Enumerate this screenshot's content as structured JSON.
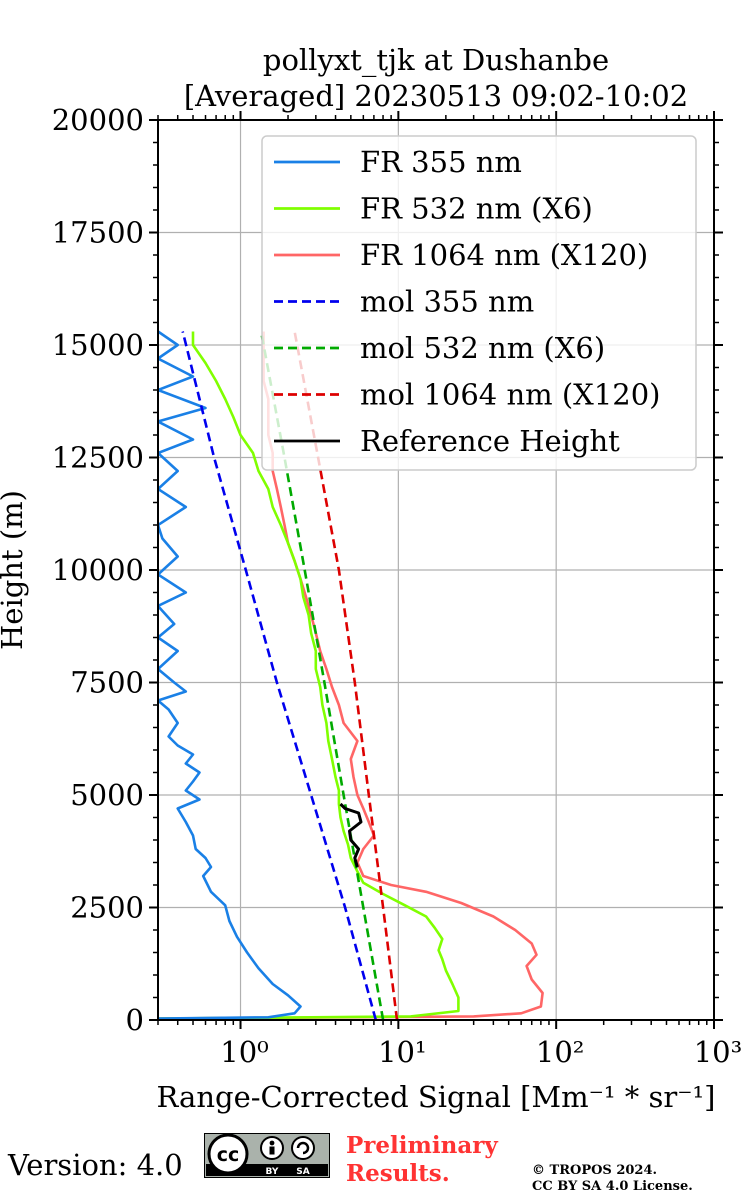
{
  "chart_data": {
    "type": "line",
    "title": "pollyxt_tjk at Dushanbe",
    "subtitle": "[Averaged] 20230513 09:02-10:02",
    "xlabel": "Range-Corrected Signal [Mm⁻¹ * sr⁻¹]",
    "ylabel": "Height (m)",
    "xscale": "log",
    "xlim": [
      0.3,
      1000
    ],
    "ylim": [
      0,
      20000
    ],
    "grid": true,
    "legend_position": "top-right",
    "x_tick_labels": [
      "10⁰",
      "10¹",
      "10²",
      "10³"
    ],
    "y_tick_labels": [
      "0",
      "2500",
      "5000",
      "7500",
      "10000",
      "12500",
      "15000",
      "17500",
      "20000"
    ],
    "series": [
      {
        "name": "FR 355 nm",
        "color": "#1a80e6",
        "style": "solid",
        "points": [
          [
            0.3,
            30
          ],
          [
            1.5,
            60
          ],
          [
            2.2,
            150
          ],
          [
            2.4,
            300
          ],
          [
            2.0,
            550
          ],
          [
            1.6,
            800
          ],
          [
            1.3,
            1150
          ],
          [
            1.1,
            1500
          ],
          [
            0.95,
            1850
          ],
          [
            0.85,
            2200
          ],
          [
            0.8,
            2550
          ],
          [
            0.65,
            2850
          ],
          [
            0.58,
            3200
          ],
          [
            0.65,
            3400
          ],
          [
            0.6,
            3600
          ],
          [
            0.52,
            3800
          ],
          [
            0.5,
            4100
          ],
          [
            0.45,
            4400
          ],
          [
            0.4,
            4700
          ],
          [
            0.55,
            4900
          ],
          [
            0.45,
            5100
          ],
          [
            0.5,
            5300
          ],
          [
            0.55,
            5500
          ],
          [
            0.45,
            5700
          ],
          [
            0.5,
            5900
          ],
          [
            0.4,
            6100
          ],
          [
            0.35,
            6300
          ],
          [
            0.4,
            6600
          ],
          [
            0.35,
            6900
          ],
          [
            0.3,
            7100
          ],
          [
            0.45,
            7300
          ],
          [
            0.38,
            7500
          ],
          [
            0.3,
            7800
          ],
          [
            0.4,
            8200
          ],
          [
            0.3,
            8500
          ],
          [
            0.38,
            8800
          ],
          [
            0.3,
            9200
          ],
          [
            0.45,
            9500
          ],
          [
            0.3,
            9900
          ],
          [
            0.4,
            10300
          ],
          [
            0.32,
            10700
          ],
          [
            0.3,
            11000
          ],
          [
            0.45,
            11400
          ],
          [
            0.3,
            11800
          ],
          [
            0.4,
            12200
          ],
          [
            0.3,
            12600
          ],
          [
            0.5,
            12900
          ],
          [
            0.3,
            13300
          ],
          [
            0.6,
            13600
          ],
          [
            0.3,
            14000
          ],
          [
            0.5,
            14300
          ],
          [
            0.3,
            14700
          ],
          [
            0.4,
            15000
          ],
          [
            0.3,
            15300
          ]
        ]
      },
      {
        "name": "FR 532 nm (X6)",
        "color": "#80ff00",
        "style": "solid",
        "points": [
          [
            0.3,
            30
          ],
          [
            12,
            80
          ],
          [
            24,
            200
          ],
          [
            24,
            500
          ],
          [
            22,
            800
          ],
          [
            20,
            1100
          ],
          [
            19,
            1350
          ],
          [
            18,
            1550
          ],
          [
            19,
            1800
          ],
          [
            17,
            2050
          ],
          [
            15,
            2300
          ],
          [
            11,
            2550
          ],
          [
            8,
            2800
          ],
          [
            6,
            3050
          ],
          [
            5.5,
            3300
          ],
          [
            5,
            3600
          ],
          [
            4.8,
            3900
          ],
          [
            4.5,
            4200
          ],
          [
            4.3,
            4500
          ],
          [
            4.2,
            4800
          ],
          [
            4.2,
            5100
          ],
          [
            4.0,
            5400
          ],
          [
            3.8,
            5800
          ],
          [
            3.6,
            6200
          ],
          [
            3.5,
            6600
          ],
          [
            3.3,
            7000
          ],
          [
            3.2,
            7400
          ],
          [
            3.0,
            7800
          ],
          [
            3.0,
            8200
          ],
          [
            2.8,
            8600
          ],
          [
            2.7,
            9000
          ],
          [
            2.5,
            9400
          ],
          [
            2.4,
            9800
          ],
          [
            2.2,
            10200
          ],
          [
            2.0,
            10600
          ],
          [
            1.8,
            11000
          ],
          [
            1.6,
            11400
          ],
          [
            1.5,
            11800
          ],
          [
            1.3,
            12200
          ],
          [
            1.2,
            12600
          ],
          [
            1.0,
            13000
          ],
          [
            0.9,
            13400
          ],
          [
            0.8,
            13800
          ],
          [
            0.7,
            14200
          ],
          [
            0.6,
            14600
          ],
          [
            0.5,
            15000
          ],
          [
            0.5,
            15300
          ]
        ]
      },
      {
        "name": "FR 1064 nm (X120)",
        "color": "#ff6666",
        "style": "solid",
        "points": [
          [
            0.3,
            30
          ],
          [
            30,
            80
          ],
          [
            60,
            150
          ],
          [
            80,
            300
          ],
          [
            82,
            600
          ],
          [
            70,
            900
          ],
          [
            65,
            1200
          ],
          [
            75,
            1450
          ],
          [
            70,
            1700
          ],
          [
            55,
            2000
          ],
          [
            40,
            2300
          ],
          [
            25,
            2600
          ],
          [
            15,
            2850
          ],
          [
            9,
            3000
          ],
          [
            6,
            3200
          ],
          [
            5.5,
            3500
          ],
          [
            6,
            3800
          ],
          [
            7,
            4100
          ],
          [
            6.5,
            4400
          ],
          [
            6,
            4700
          ],
          [
            5.5,
            5000
          ],
          [
            5.2,
            5400
          ],
          [
            5.0,
            5800
          ],
          [
            5.5,
            6200
          ],
          [
            4.5,
            6600
          ],
          [
            4.2,
            7000
          ],
          [
            3.8,
            7400
          ],
          [
            3.5,
            7800
          ],
          [
            3.2,
            8200
          ],
          [
            3.0,
            8600
          ],
          [
            2.8,
            9000
          ],
          [
            2.6,
            9400
          ],
          [
            2.4,
            9800
          ],
          [
            2.2,
            10200
          ],
          [
            2.0,
            10600
          ],
          [
            1.9,
            11000
          ],
          [
            1.8,
            11400
          ],
          [
            1.7,
            11800
          ],
          [
            1.6,
            12200
          ],
          [
            1.6,
            12600
          ],
          [
            1.5,
            13000
          ],
          [
            1.5,
            13400
          ],
          [
            1.5,
            13800
          ],
          [
            1.4,
            14200
          ],
          [
            1.4,
            14600
          ],
          [
            1.4,
            15000
          ],
          [
            1.4,
            15300
          ]
        ]
      },
      {
        "name": "mol 355 nm",
        "color": "#0000ee",
        "style": "dashed",
        "points": [
          [
            7.2,
            0
          ],
          [
            4.6,
            2500
          ],
          [
            2.8,
            5000
          ],
          [
            1.7,
            7500
          ],
          [
            1.08,
            10000
          ],
          [
            0.68,
            12500
          ],
          [
            0.43,
            15300
          ]
        ]
      },
      {
        "name": "mol 532 nm (X6)",
        "color": "#00aa00",
        "style": "dashed",
        "points": [
          [
            8.0,
            0
          ],
          [
            6.0,
            2500
          ],
          [
            4.5,
            5000
          ],
          [
            3.4,
            7500
          ],
          [
            2.55,
            10000
          ],
          [
            1.9,
            12500
          ],
          [
            1.35,
            15300
          ]
        ]
      },
      {
        "name": "mol 1064 nm (X120)",
        "color": "#dd0000",
        "style": "dashed",
        "points": [
          [
            9.8,
            0
          ],
          [
            8.0,
            2500
          ],
          [
            6.5,
            5000
          ],
          [
            5.3,
            7500
          ],
          [
            4.2,
            10000
          ],
          [
            3.1,
            12500
          ],
          [
            2.2,
            15300
          ]
        ]
      },
      {
        "name": "Reference Height",
        "color": "#000000",
        "style": "solid",
        "points": [
          [
            5.5,
            3400
          ],
          [
            5.3,
            3600
          ],
          [
            5.6,
            3800
          ],
          [
            5.0,
            4000
          ],
          [
            4.9,
            4200
          ],
          [
            5.8,
            4400
          ],
          [
            5.6,
            4600
          ],
          [
            4.6,
            4700
          ],
          [
            4.3,
            4800
          ]
        ]
      }
    ]
  },
  "footer": {
    "version": "Version: 4.0",
    "preliminary_line1": "Preliminary",
    "preliminary_line2": "Results.",
    "copyright_line1": "© TROPOS 2024.",
    "copyright_line2": "CC BY SA 4.0 License.",
    "badge_text_by": "BY",
    "badge_text_sa": "SA"
  }
}
